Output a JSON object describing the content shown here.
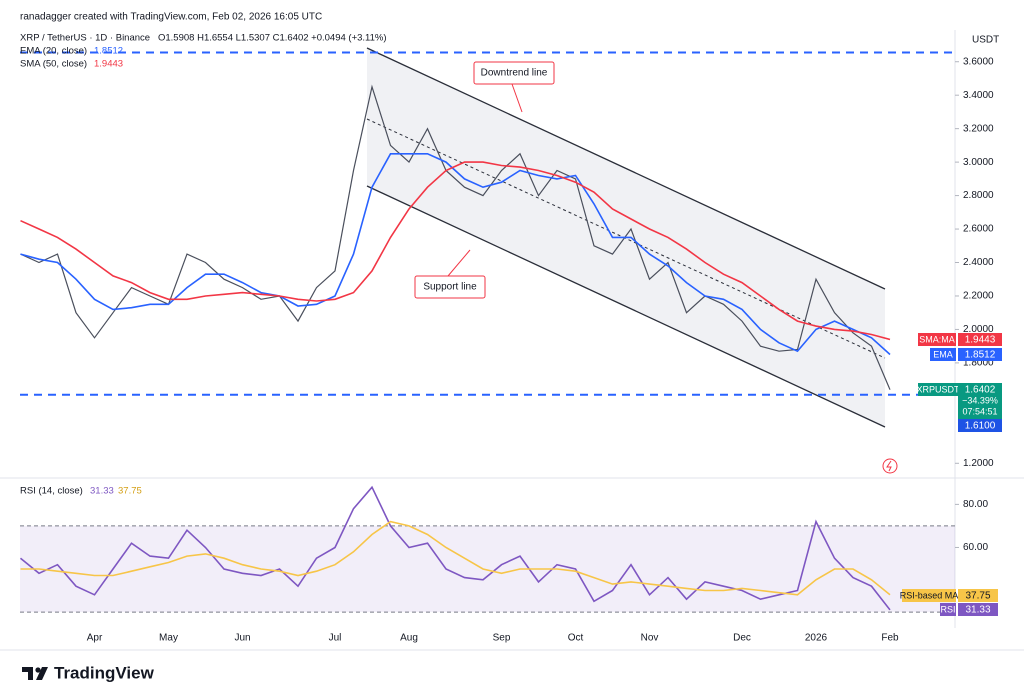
{
  "header": {
    "attribution": "ranadagger created with TradingView.com, Feb 02, 2026 16:05 UTC",
    "symbol": "XRP / TetherUS · 1D · Binance",
    "ohlc": "O1.5908 H1.6554 L1.5307 C1.6402 +0.0494 (+3.11%)",
    "ema_legend": "EMA (20, close)",
    "ema_value": "1.8512",
    "sma_legend": "SMA (50, close)",
    "sma_value": "1.9443",
    "rsi_legend": "RSI (14, close)",
    "rsi_value": "31.33",
    "rsi_ma_value": "37.75"
  },
  "annotations": {
    "downtrend": "Downtrend line",
    "support": "Support line"
  },
  "price_axis_labels": {
    "currency": "USDT",
    "sma_tag": "SMA:MA",
    "sma_price": "1.9443",
    "ema_tag": "EMA",
    "ema_price": "1.8512",
    "symbol_tag": "XRPUSDT",
    "last_price": "1.6402",
    "change": "−34.39%",
    "countdown": "07:54:51",
    "level": "1.6100"
  },
  "rsi_axis_labels": {
    "ma_tag": "RSI-based MA",
    "ma_value": "37.75",
    "rsi_tag": "RSI",
    "rsi_value": "31.33"
  },
  "chart_data": [
    {
      "type": "line",
      "ylim": [
        1.13,
        3.7
      ],
      "yticks": [
        {
          "value": 3.6,
          "label": "3.6000"
        },
        {
          "value": 3.4,
          "label": "3.4000"
        },
        {
          "value": 3.2,
          "label": "3.2000"
        },
        {
          "value": 3.0,
          "label": "3.0000"
        },
        {
          "value": 2.8,
          "label": "2.8000"
        },
        {
          "value": 2.6,
          "label": "2.6000"
        },
        {
          "value": 2.4,
          "label": "2.4000"
        },
        {
          "value": 2.2,
          "label": "2.2000"
        },
        {
          "value": 2.0,
          "label": "2.0000"
        },
        {
          "value": 1.8,
          "label": "1.8000"
        },
        {
          "value": 1.2,
          "label": "1.2000"
        }
      ],
      "grid": false,
      "horizontal_lines": [
        3.655,
        1.61
      ],
      "horizontal_line_color": "#2962ff",
      "series": [
        {
          "color": "#4a4f5c",
          "values": [
            2.45,
            2.4,
            2.45,
            2.1,
            1.95,
            2.1,
            2.25,
            2.2,
            2.15,
            2.45,
            2.4,
            2.3,
            2.25,
            2.18,
            2.2,
            2.05,
            2.25,
            2.35,
            2.95,
            3.45,
            3.1,
            3.0,
            3.2,
            2.95,
            2.85,
            2.8,
            2.95,
            3.05,
            2.8,
            2.95,
            2.9,
            2.5,
            2.45,
            2.6,
            2.3,
            2.4,
            2.1,
            2.2,
            2.15,
            2.05,
            1.9,
            1.87,
            1.88,
            2.3,
            2.1,
            1.98,
            1.9,
            1.64
          ]
        },
        {
          "color": "#2962ff",
          "values": [
            2.45,
            2.42,
            2.4,
            2.3,
            2.18,
            2.12,
            2.13,
            2.15,
            2.15,
            2.25,
            2.33,
            2.33,
            2.28,
            2.22,
            2.2,
            2.14,
            2.15,
            2.2,
            2.45,
            2.85,
            3.05,
            3.05,
            3.05,
            3.0,
            2.9,
            2.85,
            2.88,
            2.95,
            2.92,
            2.9,
            2.92,
            2.75,
            2.55,
            2.55,
            2.45,
            2.38,
            2.28,
            2.2,
            2.18,
            2.12,
            2.0,
            1.92,
            1.87,
            2.0,
            2.05,
            2.0,
            1.95,
            1.85
          ]
        },
        {
          "color": "#f23645",
          "values": [
            2.65,
            2.6,
            2.55,
            2.48,
            2.4,
            2.32,
            2.28,
            2.22,
            2.18,
            2.18,
            2.2,
            2.21,
            2.22,
            2.21,
            2.2,
            2.18,
            2.17,
            2.18,
            2.22,
            2.35,
            2.55,
            2.72,
            2.85,
            2.95,
            3.0,
            3.0,
            2.98,
            2.97,
            2.95,
            2.92,
            2.88,
            2.82,
            2.72,
            2.66,
            2.6,
            2.55,
            2.48,
            2.4,
            2.33,
            2.28,
            2.2,
            2.12,
            2.05,
            2.02,
            2.0,
            1.99,
            1.97,
            1.94
          ]
        }
      ]
    },
    {
      "type": "line",
      "categories": [
        null,
        null,
        null,
        null,
        "Apr",
        null,
        null,
        null,
        "May",
        null,
        null,
        null,
        "Jun",
        null,
        null,
        null,
        null,
        "Jul",
        null,
        null,
        null,
        "Aug",
        null,
        null,
        null,
        null,
        "Sep",
        null,
        null,
        null,
        "Oct",
        null,
        null,
        null,
        "Nov",
        null,
        null,
        null,
        null,
        "Dec",
        null,
        null,
        null,
        "2026",
        null,
        null,
        null,
        "Feb"
      ],
      "ylim": [
        24,
        89
      ],
      "yticks": [
        {
          "value": 80,
          "label": "80.00"
        },
        {
          "value": 60,
          "label": "60.00"
        }
      ],
      "bands": [
        30,
        70
      ],
      "band_color": "#7e57c2",
      "series": [
        {
          "color": "#7e57c2",
          "values": [
            55,
            48,
            52,
            42,
            38,
            50,
            62,
            56,
            55,
            68,
            60,
            50,
            48,
            47,
            50,
            42,
            55,
            60,
            78,
            88,
            70,
            60,
            62,
            50,
            46,
            45,
            52,
            56,
            44,
            52,
            50,
            35,
            40,
            52,
            38,
            46,
            36,
            44,
            42,
            40,
            36,
            38,
            40,
            72,
            55,
            46,
            42,
            31
          ]
        },
        {
          "color": "#f7c548",
          "values": [
            50,
            50,
            49,
            48,
            47,
            47,
            49,
            51,
            53,
            56,
            57,
            55,
            52,
            50,
            49,
            47,
            49,
            52,
            58,
            66,
            72,
            70,
            66,
            60,
            55,
            50,
            48,
            50,
            50,
            50,
            49,
            46,
            43,
            44,
            43,
            42,
            41,
            40,
            40,
            41,
            40,
            39,
            38,
            45,
            50,
            50,
            45,
            38
          ]
        }
      ]
    }
  ],
  "footer": {
    "brand": "TradingView"
  }
}
